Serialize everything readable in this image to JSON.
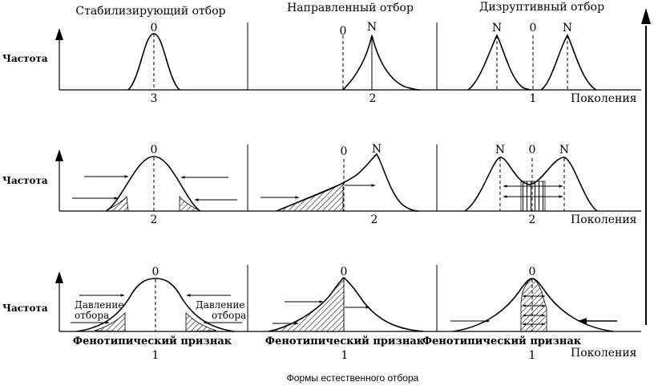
{
  "columns": [
    {
      "title": "Стабилизирующий отбор"
    },
    {
      "title": "Направленный отбор"
    },
    {
      "title": "Дизруптивный отбор"
    }
  ],
  "rows": [
    {
      "ylabel": "Частота",
      "generation": "3",
      "xlabel": ""
    },
    {
      "ylabel": "Частота",
      "generation": "2",
      "xlabel": ""
    },
    {
      "ylabel": "Частота",
      "generation": "1",
      "xlabel": "Фенотипический признак"
    }
  ],
  "generations_label": "Поколения",
  "mark_zero": "0",
  "mark_n": "N",
  "pressure_label_line1": "Давление",
  "pressure_label_line2": "отбора",
  "caption": "Формы естественного отбора",
  "colors": {
    "ink": "#000000",
    "background": "#ffffff"
  }
}
